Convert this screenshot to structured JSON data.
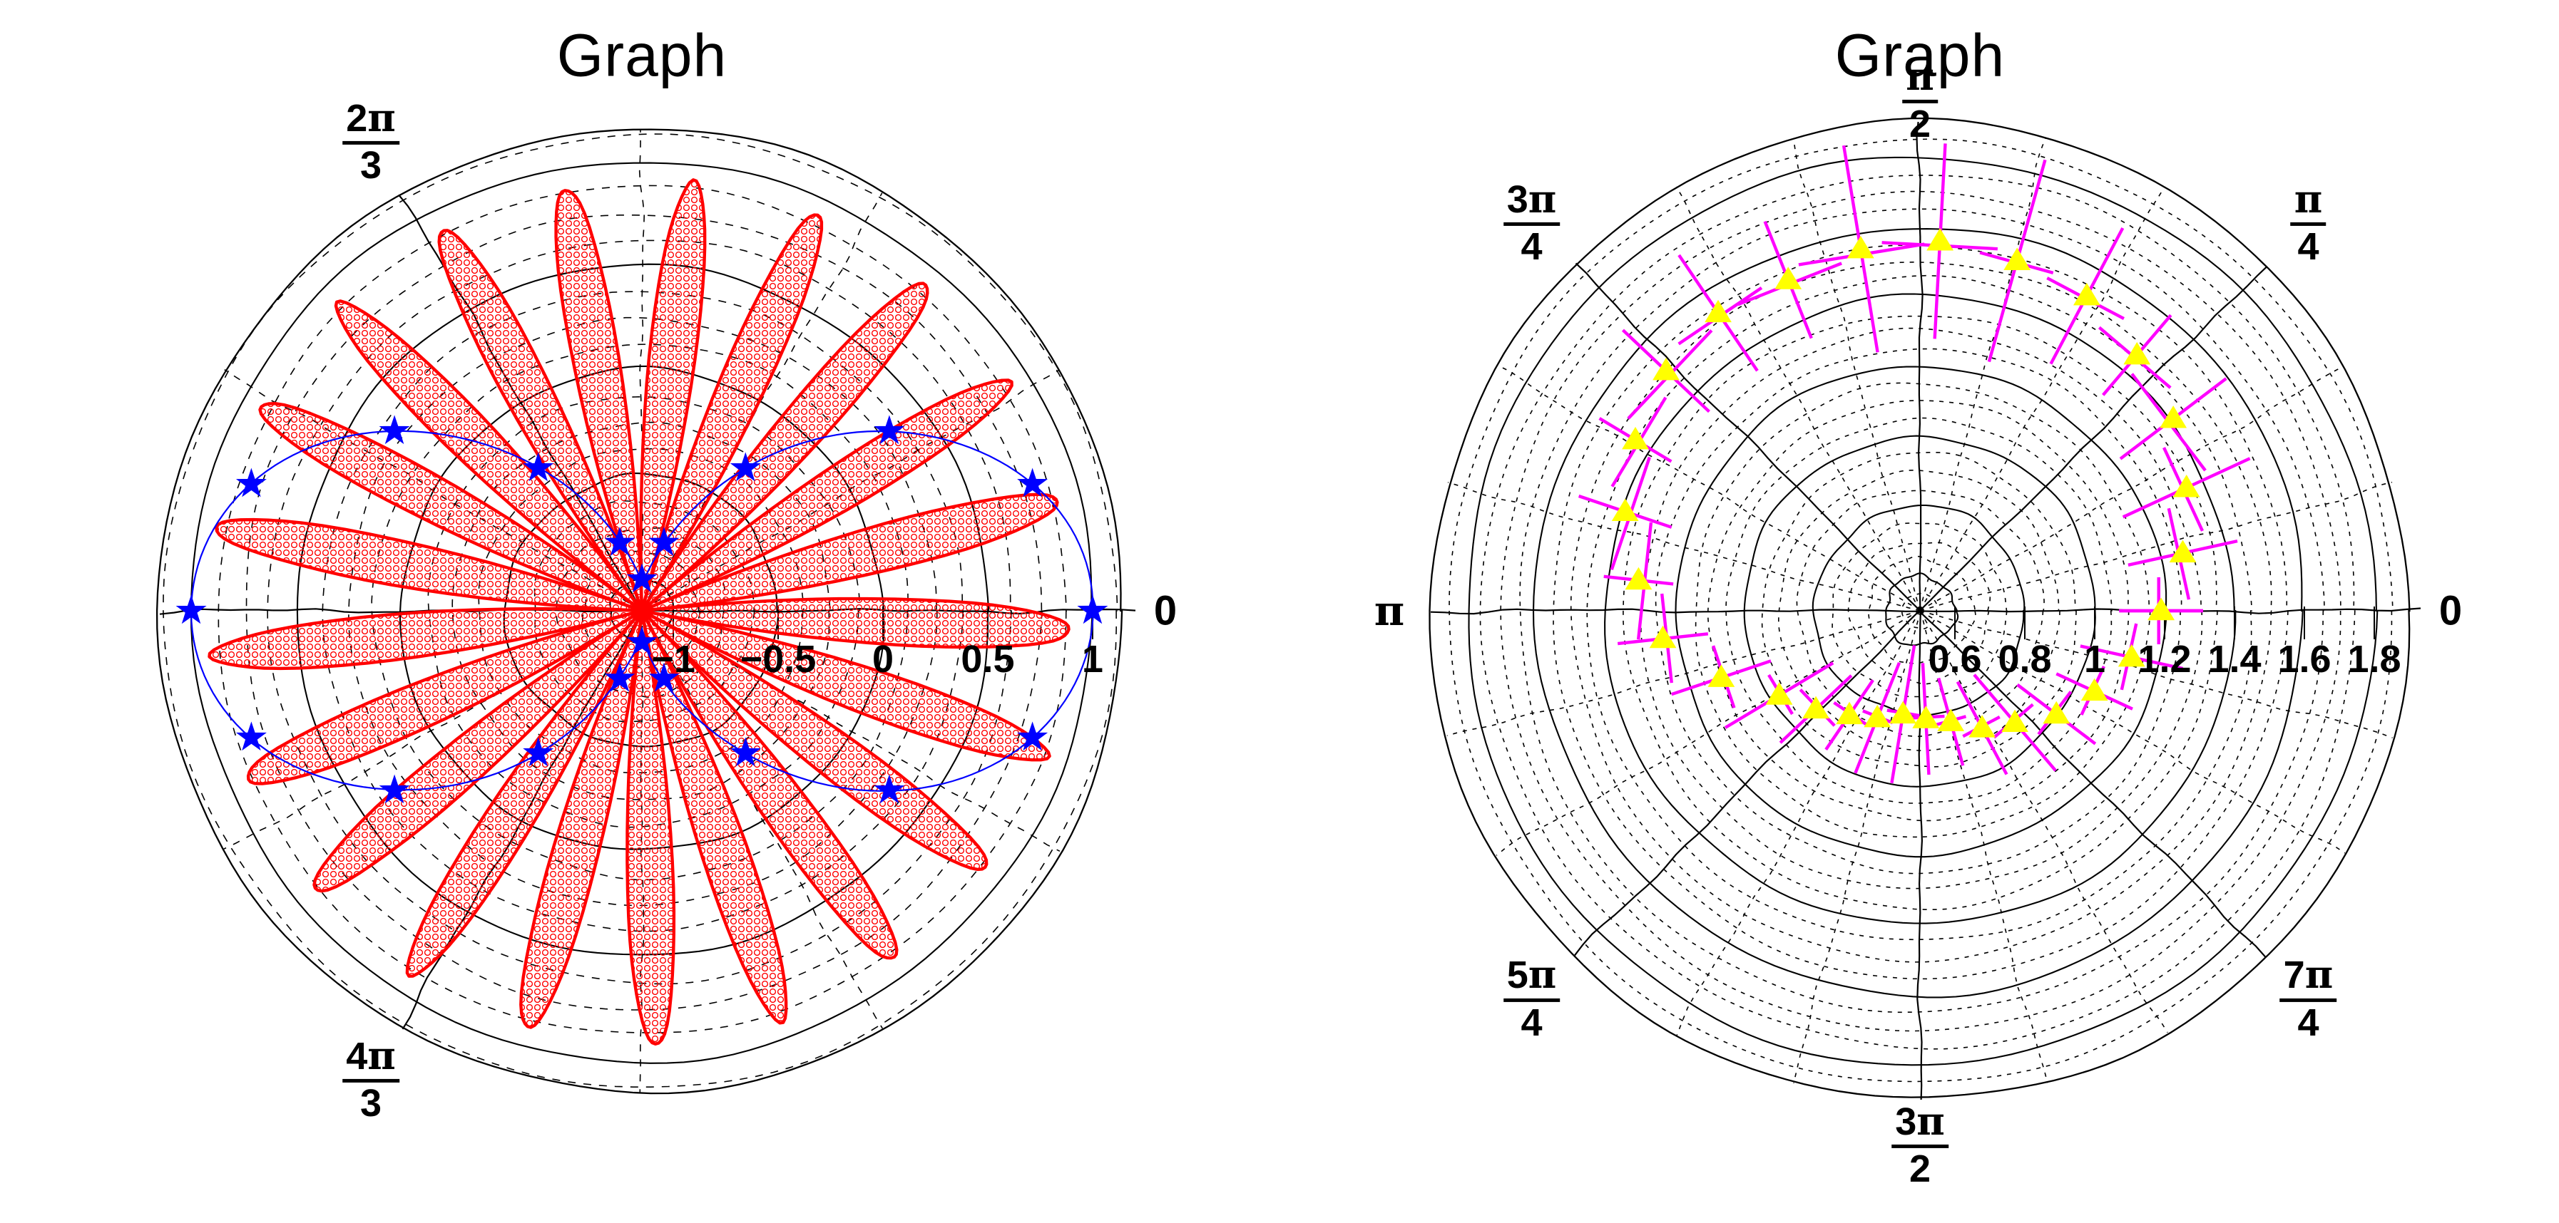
{
  "page": {
    "background": "#ffffff",
    "grid_color": "#000000",
    "text_color": "#000000"
  },
  "chart_data": [
    {
      "type": "polar",
      "title": "Graph",
      "rlim": [
        -1.15,
        1.15
      ],
      "r_ticks": [
        -1,
        -0.5,
        0,
        0.5,
        1
      ],
      "r_tick_labels": [
        "−1",
        "−0.5",
        "0",
        "0.5",
        "1"
      ],
      "r_minor_step": 0.125,
      "theta_major_deg": [
        0,
        120,
        180,
        240
      ],
      "theta_minor_step_deg": 30,
      "grid": "on",
      "theta_labels": [
        {
          "angle_deg": 0,
          "text": "0"
        },
        {
          "angle_deg": 120,
          "num": "2π",
          "den": "3"
        },
        {
          "angle_deg": 240,
          "num": "4π",
          "den": "3"
        }
      ],
      "series": [
        {
          "name": "rose",
          "kind": "filled_rose",
          "formula": "r = cos(10.5·θ)",
          "petal_count": 21,
          "petal_tip_r": 0.91,
          "phase_deg": -2.5,
          "color": "#ff0000",
          "hatch": "o-circles"
        },
        {
          "name": "star_line",
          "kind": "line_with_markers",
          "formula": "r = cos(2·θ)",
          "color": "#0000ff",
          "marker": "star",
          "marker_theta_deg": [
            0,
            18,
            36,
            54,
            72,
            90,
            108,
            126,
            144,
            162,
            180,
            198,
            216,
            234,
            252,
            270,
            288,
            306,
            324,
            342
          ],
          "marker_r": [
            1,
            0.809,
            0.309,
            -0.309,
            -0.809,
            -1,
            -0.809,
            -0.309,
            0.309,
            0.809,
            1,
            0.809,
            0.309,
            -0.309,
            -0.809,
            -1,
            -0.809,
            -0.309,
            0.309,
            0.809
          ]
        }
      ]
    },
    {
      "type": "polar",
      "title": "Graph",
      "rlim": [
        0.5,
        1.9
      ],
      "r_ticks": [
        0.6,
        0.8,
        1,
        1.2,
        1.4,
        1.6,
        1.8
      ],
      "r_tick_labels": [
        "0.6",
        "0.8",
        "1",
        "1.2",
        "1.4",
        "1.6",
        "1.8"
      ],
      "r_minor_step": 0.05,
      "theta_major_deg": [
        0,
        45,
        90,
        135,
        180,
        225,
        270,
        315
      ],
      "theta_minor_step_deg": 15,
      "grid": "on",
      "theta_labels": [
        {
          "angle_deg": 0,
          "text": "0"
        },
        {
          "angle_deg": 45,
          "num": "π",
          "den": "4"
        },
        {
          "angle_deg": 90,
          "num": "π",
          "den": "2"
        },
        {
          "angle_deg": 135,
          "num": "3π",
          "den": "4"
        },
        {
          "angle_deg": 180,
          "text": "π"
        },
        {
          "angle_deg": 225,
          "num": "5π",
          "den": "4"
        },
        {
          "angle_deg": 270,
          "num": "3π",
          "den": "2"
        },
        {
          "angle_deg": 315,
          "num": "7π",
          "den": "4"
        }
      ],
      "series": [
        {
          "name": "errorbar_series",
          "kind": "polar_errorbar",
          "line_color": "#ff00ff",
          "marker": "triangle_up",
          "marker_color": "#ffff00",
          "trend": "r ≈ 1.2 + 0.37·sin(θ)",
          "points": [
            {
              "theta_deg": 0.0,
              "r": 1.19,
              "r_err": 0.12,
              "theta_err_deg": 8
            },
            {
              "theta_deg": 12.4,
              "r": 1.27,
              "r_err": 0.16,
              "theta_err_deg": 10
            },
            {
              "theta_deg": 24.8,
              "r": 1.34,
              "r_err": 0.2,
              "theta_err_deg": 9
            },
            {
              "theta_deg": 37.2,
              "r": 1.41,
              "r_err": 0.19,
              "theta_err_deg": 11
            },
            {
              "theta_deg": 49.7,
              "r": 1.46,
              "r_err": 0.15,
              "theta_err_deg": 8
            },
            {
              "theta_deg": 62.1,
              "r": 1.52,
              "r_err": 0.22,
              "theta_err_deg": 7
            },
            {
              "theta_deg": 74.5,
              "r": 1.54,
              "r_err": 0.3,
              "theta_err_deg": 6
            },
            {
              "theta_deg": 86.9,
              "r": 1.56,
              "r_err": 0.28,
              "theta_err_deg": 9
            },
            {
              "theta_deg": 99.3,
              "r": 1.55,
              "r_err": 0.3,
              "theta_err_deg": 10
            },
            {
              "theta_deg": 111.7,
              "r": 1.52,
              "r_err": 0.18,
              "theta_err_deg": 9
            },
            {
              "theta_deg": 124.1,
              "r": 1.53,
              "r_err": 0.2,
              "theta_err_deg": 8
            },
            {
              "theta_deg": 136.6,
              "r": 1.5,
              "r_err": 0.17,
              "theta_err_deg": 10
            },
            {
              "theta_deg": 149.0,
              "r": 1.45,
              "r_err": 0.12,
              "theta_err_deg": 9
            },
            {
              "theta_deg": 161.4,
              "r": 1.39,
              "r_err": 0.14,
              "theta_err_deg": 11
            },
            {
              "theta_deg": 173.8,
              "r": 1.31,
              "r_err": 0.1,
              "theta_err_deg": 12
            },
            {
              "theta_deg": 186.2,
              "r": 1.24,
              "r_err": 0.13,
              "theta_err_deg": 10
            },
            {
              "theta_deg": 198.6,
              "r": 1.1,
              "r_err": 0.15,
              "theta_err_deg": 9
            },
            {
              "theta_deg": 211.0,
              "r": 0.97,
              "r_err": 0.18,
              "theta_err_deg": 8
            },
            {
              "theta_deg": 223.4,
              "r": 0.91,
              "r_err": 0.14,
              "theta_err_deg": 10
            },
            {
              "theta_deg": 235.9,
              "r": 0.86,
              "r_err": 0.12,
              "theta_err_deg": 9
            },
            {
              "theta_deg": 248.3,
              "r": 0.83,
              "r_err": 0.17,
              "theta_err_deg": 8
            },
            {
              "theta_deg": 260.7,
              "r": 0.8,
              "r_err": 0.2,
              "theta_err_deg": 9
            },
            {
              "theta_deg": 273.1,
              "r": 0.81,
              "r_err": 0.16,
              "theta_err_deg": 10
            },
            {
              "theta_deg": 285.5,
              "r": 0.83,
              "r_err": 0.13,
              "theta_err_deg": 8
            },
            {
              "theta_deg": 297.9,
              "r": 0.88,
              "r_err": 0.15,
              "theta_err_deg": 9
            },
            {
              "theta_deg": 310.3,
              "r": 0.92,
              "r_err": 0.18,
              "theta_err_deg": 10
            },
            {
              "theta_deg": 322.8,
              "r": 0.99,
              "r_err": 0.14,
              "theta_err_deg": 9
            },
            {
              "theta_deg": 335.2,
              "r": 1.05,
              "r_err": 0.12,
              "theta_err_deg": 8
            },
            {
              "theta_deg": 347.6,
              "r": 1.12,
              "r_err": 0.15,
              "theta_err_deg": 9
            },
            {
              "theta_deg": 360.0,
              "r": 1.19,
              "r_err": 0.12,
              "theta_err_deg": 8
            }
          ]
        }
      ]
    }
  ]
}
